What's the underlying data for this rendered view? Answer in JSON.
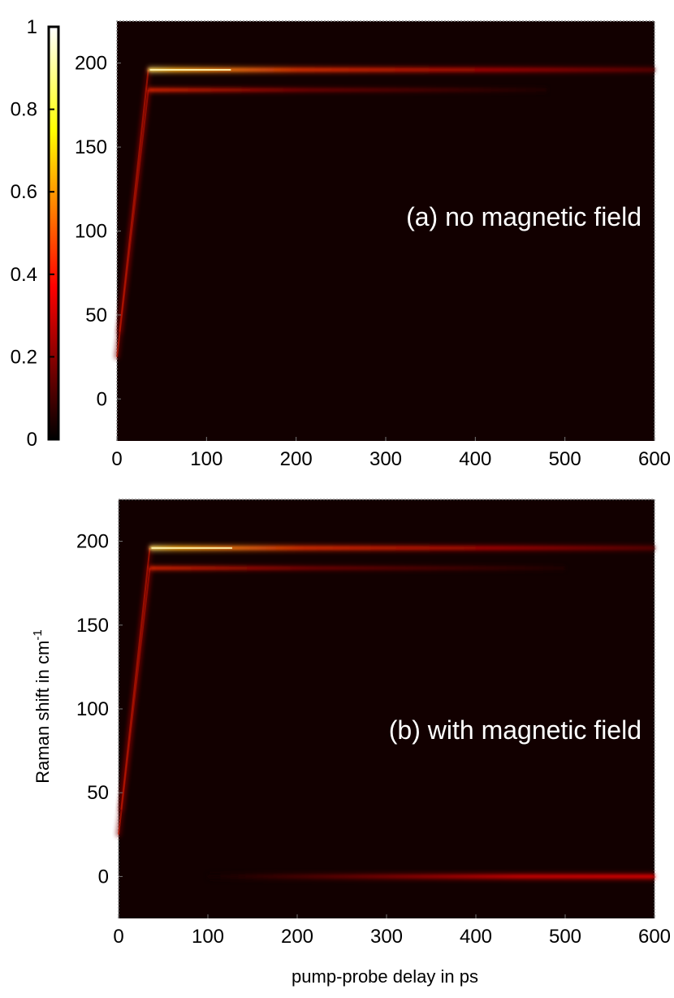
{
  "chart_data": [
    {
      "type": "heatmap",
      "title": "",
      "panel_label": "(a) no magnetic field",
      "xlabel": "",
      "ylabel": "",
      "xlim": [
        0,
        600
      ],
      "ylim": [
        -25,
        225
      ],
      "x_ticks": [
        "0",
        "100",
        "200",
        "300",
        "400",
        "500",
        "600"
      ],
      "y_ticks": [
        "0",
        "50",
        "100",
        "150",
        "200"
      ],
      "colormap": "hot",
      "background_color": "#120000",
      "features": [
        {
          "kind": "rise",
          "from": [
            0,
            25
          ],
          "to": [
            35,
            184
          ],
          "intensity": 0.35
        },
        {
          "kind": "rise",
          "from": [
            3,
            40
          ],
          "to": [
            35,
            196
          ],
          "intensity": 0.3
        },
        {
          "kind": "line",
          "raman_shift": 196,
          "x_start": 35,
          "x_end": 600,
          "peak_intensity": 0.95
        },
        {
          "kind": "line",
          "raman_shift": 184,
          "x_start": 35,
          "x_end": 480,
          "peak_intensity": 0.4
        }
      ]
    },
    {
      "type": "heatmap",
      "title": "",
      "panel_label": "(b) with magnetic field",
      "xlabel": "pump-probe delay in ps",
      "ylabel": "Raman shift in cm",
      "ylabel_superscript": "-1",
      "xlim": [
        0,
        600
      ],
      "ylim": [
        -25,
        225
      ],
      "x_ticks": [
        "0",
        "100",
        "200",
        "300",
        "400",
        "500",
        "600"
      ],
      "y_ticks": [
        "0",
        "50",
        "100",
        "150",
        "200"
      ],
      "colormap": "hot",
      "background_color": "#120000",
      "features": [
        {
          "kind": "rise",
          "from": [
            0,
            25
          ],
          "to": [
            35,
            184
          ],
          "intensity": 0.35
        },
        {
          "kind": "rise",
          "from": [
            3,
            40
          ],
          "to": [
            35,
            196
          ],
          "intensity": 0.3
        },
        {
          "kind": "line",
          "raman_shift": 196,
          "x_start": 35,
          "x_end": 600,
          "peak_intensity": 0.95
        },
        {
          "kind": "line",
          "raman_shift": 184,
          "x_start": 35,
          "x_end": 500,
          "peak_intensity": 0.4
        },
        {
          "kind": "line",
          "raman_shift": 0,
          "x_start": 100,
          "x_end": 600,
          "peak_intensity": 0.45
        }
      ]
    }
  ],
  "colorbar": {
    "ticks": [
      "0",
      "0.2",
      "0.4",
      "0.6",
      "0.8",
      "1"
    ],
    "range": [
      0,
      1
    ],
    "colors": [
      "#000000",
      "#ff0000",
      "#ffff00",
      "#ffffff"
    ]
  }
}
